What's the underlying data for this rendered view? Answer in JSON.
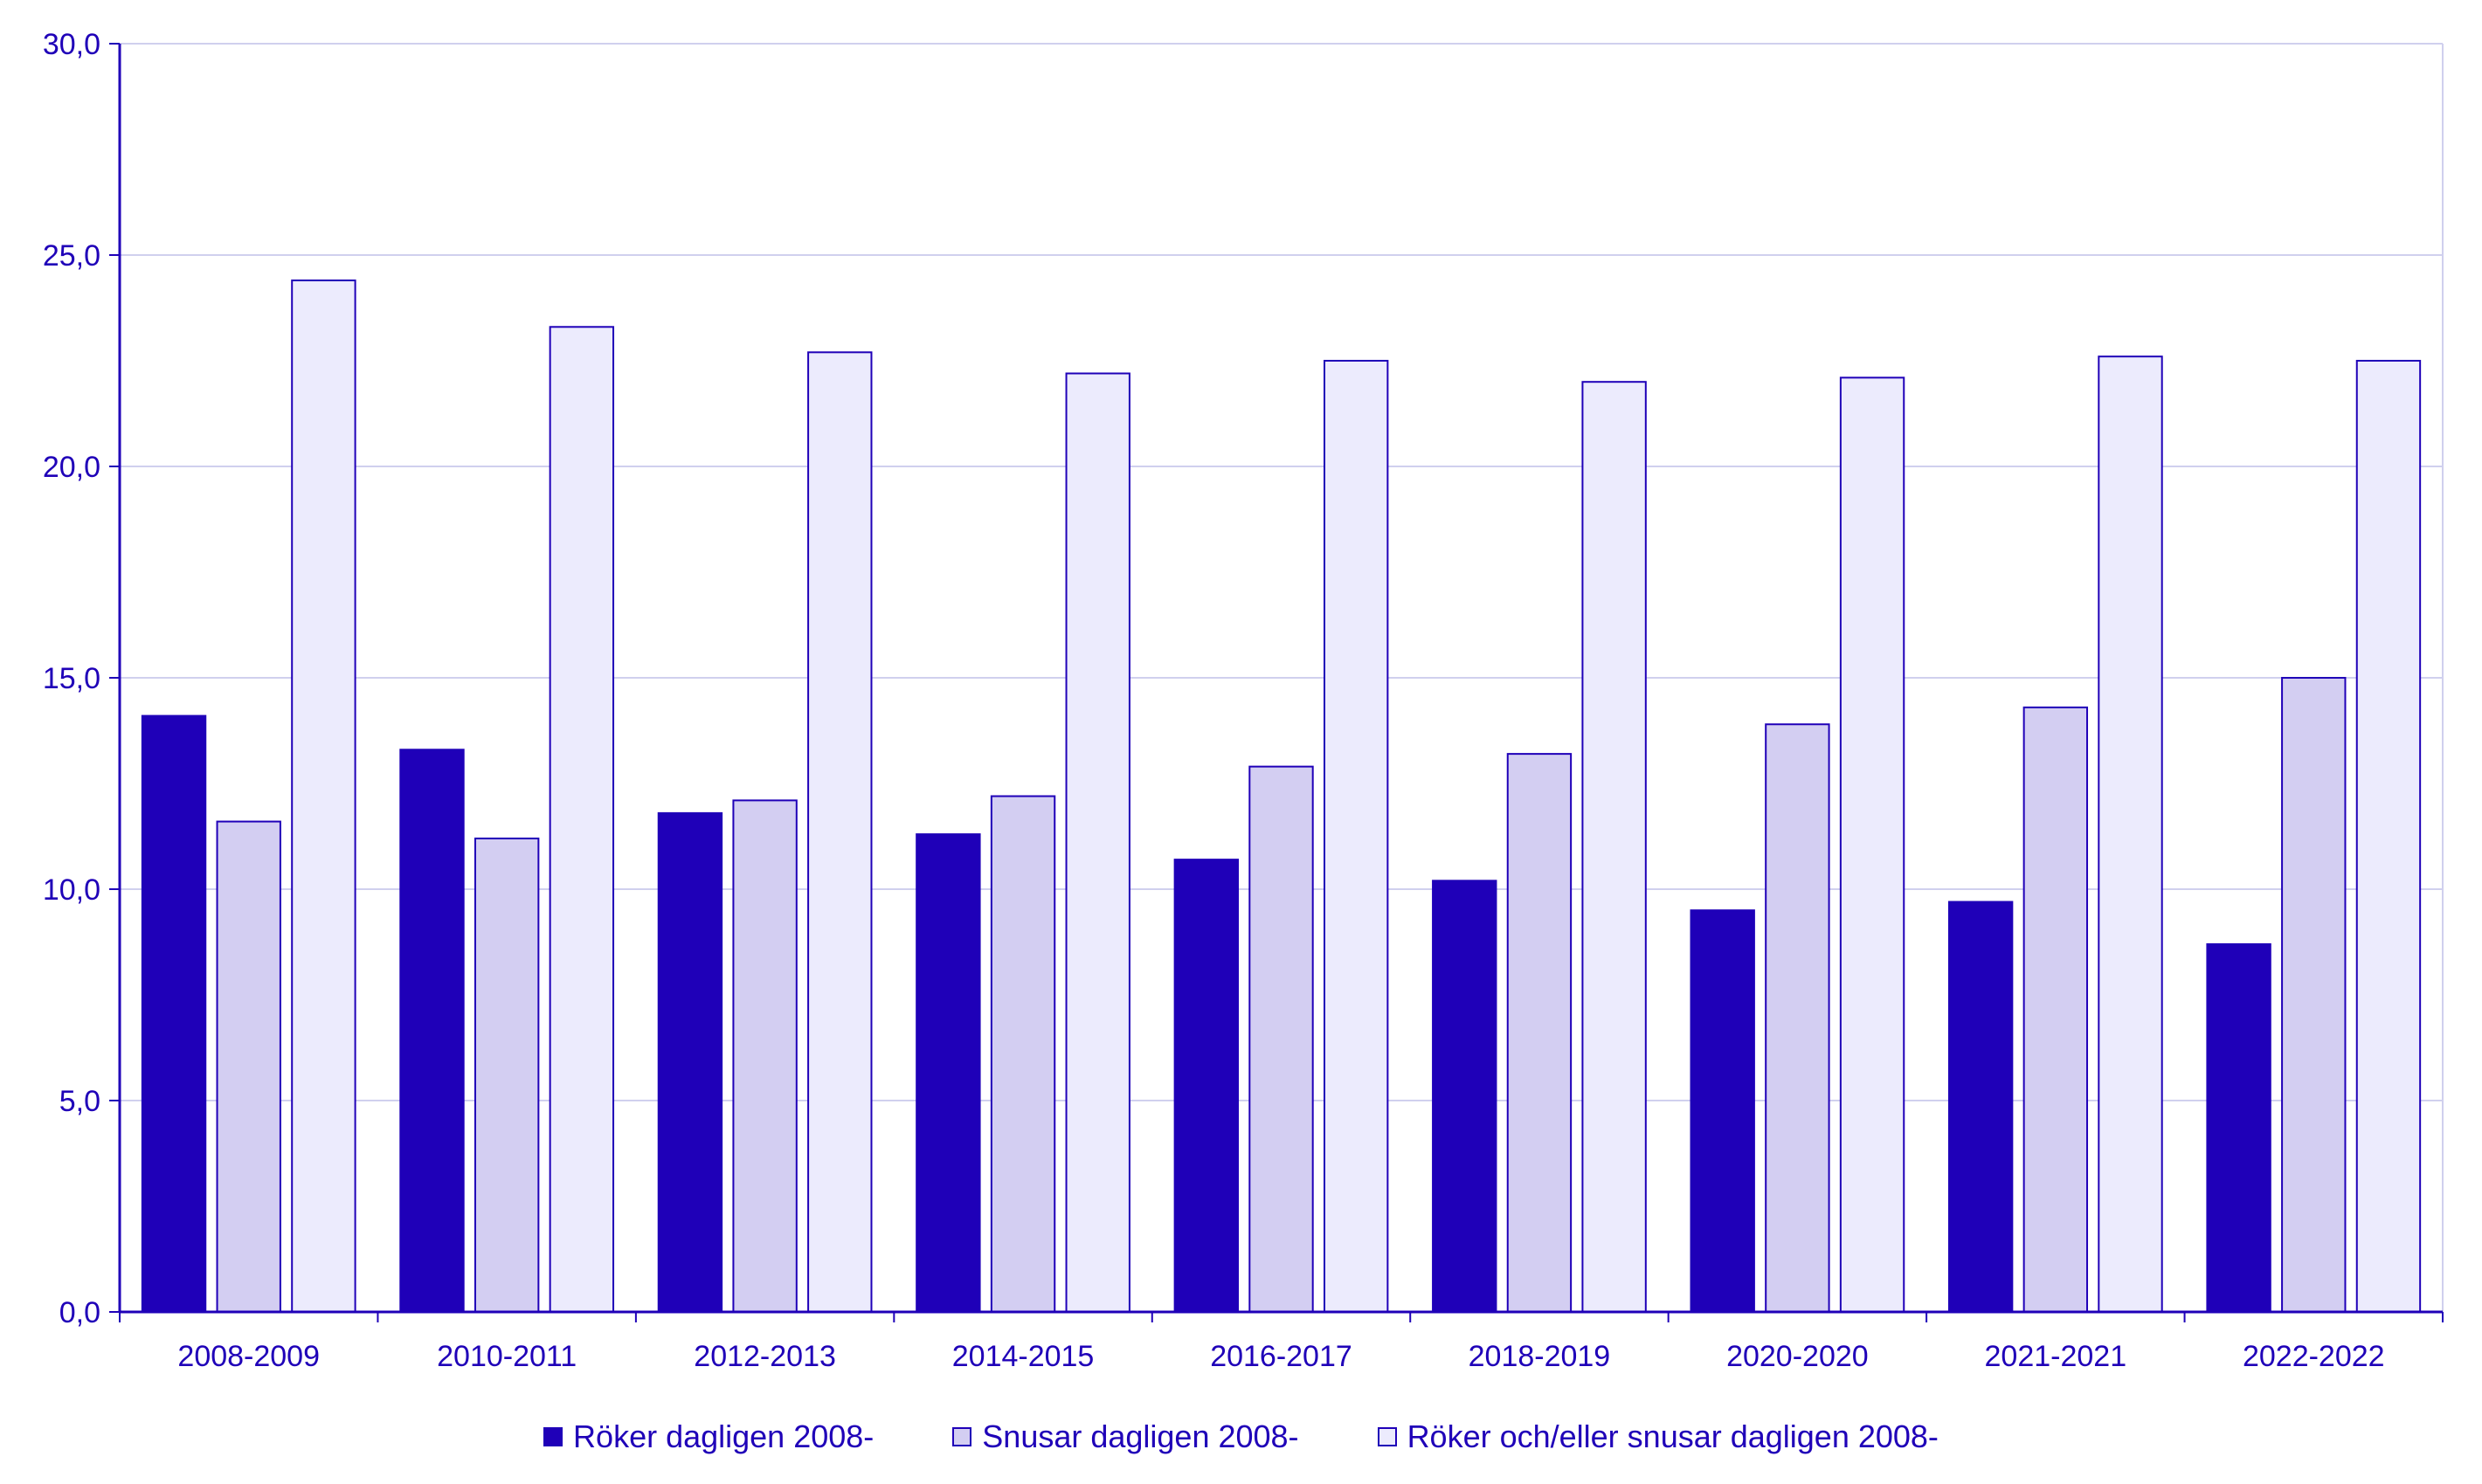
{
  "chart_data": {
    "type": "bar",
    "title": "",
    "xlabel": "",
    "ylabel": "",
    "ylim": [
      0,
      30
    ],
    "yticks": [
      "0,0",
      "5,0",
      "10,0",
      "15,0",
      "20,0",
      "25,0",
      "30,0"
    ],
    "grid": true,
    "legend_position": "bottom",
    "categories": [
      "2008-2009",
      "2010-2011",
      "2012-2013",
      "2014-2015",
      "2016-2017",
      "2018-2019",
      "2020-2020",
      "2021-2021",
      "2022-2022"
    ],
    "series": [
      {
        "name": "Röker dagligen 2008-",
        "color": "#1F00B8",
        "values": [
          14.1,
          13.3,
          11.8,
          11.3,
          10.7,
          10.2,
          9.5,
          9.7,
          8.7
        ]
      },
      {
        "name": "Snusar dagligen 2008-",
        "color": "#D3CEF2",
        "values": [
          11.6,
          11.2,
          12.1,
          12.2,
          12.9,
          13.2,
          13.9,
          14.3,
          15.0
        ]
      },
      {
        "name": "Röker och/eller snusar dagligen 2008-",
        "color": "#ECEBFD",
        "values": [
          24.4,
          23.3,
          22.7,
          22.2,
          22.5,
          22.0,
          22.1,
          22.6,
          22.5
        ]
      }
    ],
    "colors": {
      "axis": "#1F00B8",
      "grid": "#D0D0EE",
      "outline": "#1F00B8"
    }
  }
}
